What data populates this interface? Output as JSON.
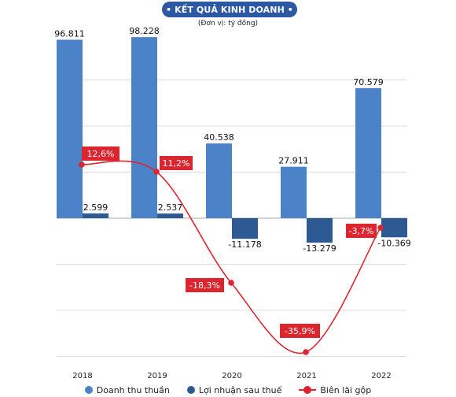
{
  "header": {
    "title": "• KẾT QUẢ KINH DOANH •",
    "unit": "(Đơn vị:  tỷ đồng)"
  },
  "colors": {
    "title_bg": "#2d58a3",
    "revenue": "#4b82c8",
    "profit": "#2e5a94",
    "margin": "#dd2530",
    "grid": "#dcdcdc",
    "label_bg": "#dd2530"
  },
  "chart_data": {
    "type": "bar",
    "categories": [
      "2018",
      "2019",
      "2020",
      "2021",
      "2022"
    ],
    "series": [
      {
        "name": "Doanh thu thuần",
        "type": "bar",
        "values": [
          96811,
          98228,
          40538,
          27911,
          70579
        ],
        "labels": [
          "96.811",
          "98.228",
          "40.538",
          "27.911",
          "70.579"
        ]
      },
      {
        "name": "Lợi nhuận sau thuế",
        "type": "bar",
        "values": [
          2599,
          2537,
          -11178,
          -13279,
          -10369
        ],
        "labels": [
          "2.599",
          "2.537",
          "-11.178",
          "-13.279",
          "-10.369"
        ]
      },
      {
        "name": "Biên lãi gộp",
        "type": "line",
        "values": [
          12.6,
          11.2,
          -18.3,
          -35.9,
          -3.7
        ],
        "labels": [
          "12,6%",
          "11,2%",
          "-18,3%",
          "-35,9%",
          "-3,7%"
        ]
      }
    ],
    "grid": true,
    "legend": "bottom"
  }
}
